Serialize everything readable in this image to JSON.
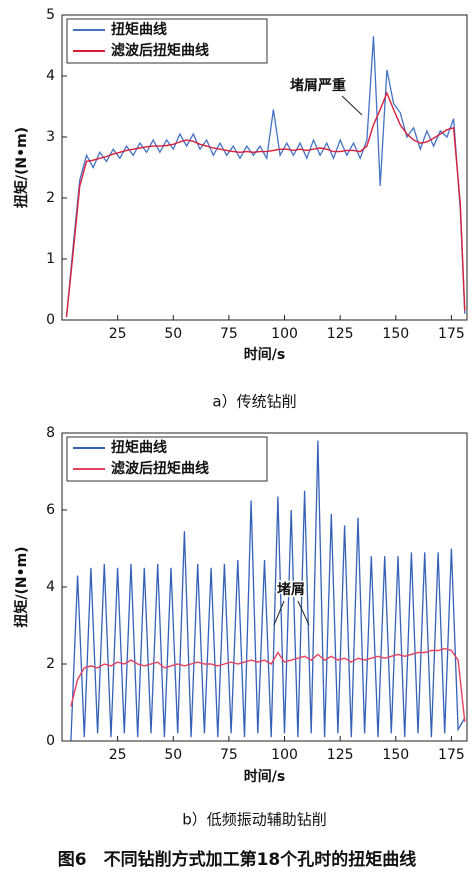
{
  "chart_data": [
    {
      "type": "line",
      "caption": "a）传统钻削",
      "xlabel": "时间/s",
      "ylabel": "扭矩/(N•m)",
      "annotation": "堵屑严重",
      "legend": "upper left",
      "xlim": [
        0,
        182
      ],
      "ylim": [
        0,
        5
      ],
      "xticks": [
        25,
        50,
        75,
        100,
        125,
        150,
        175
      ],
      "yticks": [
        0,
        1,
        2,
        3,
        4,
        5
      ],
      "x": [
        2,
        5,
        8,
        11,
        14,
        17,
        20,
        23,
        26,
        29,
        32,
        35,
        38,
        41,
        44,
        47,
        50,
        53,
        56,
        59,
        62,
        65,
        68,
        71,
        74,
        77,
        80,
        83,
        86,
        89,
        92,
        95,
        98,
        101,
        104,
        107,
        110,
        113,
        116,
        119,
        122,
        125,
        128,
        131,
        134,
        137,
        140,
        143,
        146,
        149,
        152,
        155,
        158,
        161,
        164,
        167,
        170,
        173,
        176,
        179,
        181
      ],
      "series": [
        {
          "name": "扭矩曲线",
          "color": "#4472c4",
          "values": [
            0.05,
            1.2,
            2.3,
            2.7,
            2.5,
            2.75,
            2.6,
            2.8,
            2.65,
            2.85,
            2.7,
            2.9,
            2.75,
            2.95,
            2.75,
            2.95,
            2.8,
            3.05,
            2.85,
            3.05,
            2.8,
            2.95,
            2.7,
            2.9,
            2.7,
            2.85,
            2.65,
            2.85,
            2.7,
            2.85,
            2.65,
            3.45,
            2.7,
            2.9,
            2.7,
            2.9,
            2.65,
            2.95,
            2.7,
            2.9,
            2.65,
            2.95,
            2.7,
            2.9,
            2.65,
            2.95,
            4.65,
            2.2,
            4.1,
            3.55,
            3.4,
            3.0,
            3.15,
            2.8,
            3.1,
            2.85,
            3.1,
            3.0,
            3.3,
            1.8,
            0.1
          ]
        },
        {
          "name": "滤波后扭矩曲线",
          "color": "#d8203a",
          "values": [
            0.05,
            1.1,
            2.2,
            2.6,
            2.62,
            2.65,
            2.68,
            2.72,
            2.75,
            2.78,
            2.8,
            2.82,
            2.84,
            2.85,
            2.85,
            2.86,
            2.88,
            2.92,
            2.95,
            2.93,
            2.88,
            2.85,
            2.82,
            2.8,
            2.78,
            2.76,
            2.75,
            2.76,
            2.75,
            2.76,
            2.76,
            2.78,
            2.8,
            2.8,
            2.78,
            2.8,
            2.78,
            2.8,
            2.82,
            2.8,
            2.76,
            2.76,
            2.78,
            2.78,
            2.76,
            2.85,
            3.2,
            3.45,
            3.72,
            3.45,
            3.2,
            3.05,
            2.95,
            2.9,
            2.92,
            2.98,
            3.05,
            3.12,
            3.15,
            1.9,
            0.15
          ]
        }
      ]
    },
    {
      "type": "line",
      "caption": "b）低频振动辅助钻削",
      "xlabel": "时间/s",
      "ylabel": "扭矩/(N•m)",
      "annotation": "堵屑",
      "legend": "upper left",
      "xlim": [
        0,
        182
      ],
      "ylim": [
        0,
        8
      ],
      "xticks": [
        25,
        50,
        75,
        100,
        125,
        150,
        175
      ],
      "yticks": [
        0,
        2,
        4,
        6,
        8
      ],
      "x": [
        4,
        7,
        10,
        13,
        16,
        19,
        22,
        25,
        28,
        31,
        34,
        37,
        40,
        43,
        46,
        49,
        52,
        55,
        58,
        61,
        64,
        67,
        70,
        73,
        76,
        79,
        82,
        85,
        88,
        91,
        94,
        97,
        100,
        103,
        106,
        109,
        112,
        115,
        118,
        121,
        124,
        127,
        130,
        133,
        136,
        139,
        142,
        145,
        148,
        151,
        154,
        157,
        160,
        163,
        166,
        169,
        172,
        175,
        178,
        181
      ],
      "series": [
        {
          "name": "扭矩曲线",
          "color": "#3562b8",
          "values": [
            0.0,
            4.3,
            0.1,
            4.5,
            0.2,
            4.6,
            0.1,
            4.5,
            0.2,
            4.6,
            0.1,
            4.5,
            0.2,
            4.6,
            0.1,
            4.5,
            0.2,
            5.45,
            0.1,
            4.6,
            0.2,
            4.5,
            0.1,
            4.6,
            0.2,
            4.7,
            0.1,
            6.25,
            0.2,
            4.7,
            0.1,
            6.35,
            0.2,
            6.0,
            0.1,
            6.5,
            0.2,
            7.8,
            0.1,
            5.9,
            0.2,
            5.6,
            0.1,
            5.8,
            0.2,
            4.8,
            0.1,
            4.8,
            0.2,
            4.8,
            0.1,
            4.9,
            0.2,
            4.9,
            0.1,
            4.9,
            0.2,
            5.0,
            0.3,
            0.6
          ]
        },
        {
          "name": "滤波后扭矩曲线",
          "color": "#e8415e",
          "values": [
            0.9,
            1.6,
            1.9,
            1.95,
            1.9,
            2.0,
            1.95,
            2.05,
            2.0,
            2.1,
            2.0,
            1.95,
            2.0,
            2.05,
            1.9,
            1.95,
            2.0,
            1.95,
            2.0,
            2.05,
            2.0,
            2.0,
            1.95,
            2.0,
            2.05,
            2.0,
            2.05,
            2.1,
            2.05,
            2.1,
            2.0,
            2.3,
            2.05,
            2.1,
            2.15,
            2.2,
            2.1,
            2.25,
            2.1,
            2.2,
            2.1,
            2.15,
            2.05,
            2.15,
            2.1,
            2.15,
            2.2,
            2.15,
            2.2,
            2.25,
            2.2,
            2.25,
            2.3,
            2.3,
            2.35,
            2.35,
            2.4,
            2.35,
            2.1,
            0.5
          ]
        }
      ]
    }
  ],
  "figure_caption": "图6　不同钻削方式加工第18个孔时的扭矩曲线"
}
